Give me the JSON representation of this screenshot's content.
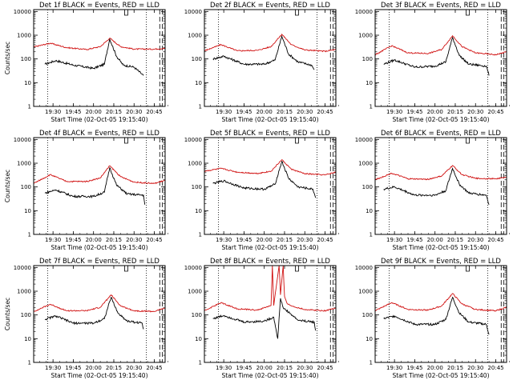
{
  "title_suffix": "BLACK = Events, RED = LLD",
  "colors": {
    "events": "#000000",
    "lld": "#d01010",
    "frame": "#000000"
  },
  "chart_data": [
    {
      "type": "line",
      "title": "Det 1f BLACK = Events, RED = LLD",
      "ylabel": "Counts/sec",
      "xlabel": "Start Time (02-Oct-05 19:15:40)",
      "x_tick_labels": [
        "19:30",
        "19:45",
        "20:00",
        "20:15",
        "20:30",
        "20:45"
      ],
      "y_tick_labels": [
        "1",
        "10",
        "100",
        "1000",
        "10000"
      ],
      "yscale": "log",
      "ylim": [
        1,
        12000
      ],
      "xlim": [
        "19:15:40",
        "20:53:00"
      ],
      "series": [
        {
          "x": [
            "19:24",
            "19:32",
            "19:45",
            "20:00",
            "20:08",
            "20:12",
            "20:17",
            "20:22",
            "20:30",
            "20:37"
          ],
          "y": [
            60,
            85,
            55,
            40,
            60,
            700,
            130,
            55,
            45,
            20
          ]
        },
        {
          "x": [
            "19:15:40",
            "19:28",
            "19:40",
            "19:55",
            "20:05",
            "20:12",
            "20:20",
            "20:30",
            "20:45",
            "20:53"
          ],
          "y": [
            320,
            460,
            300,
            250,
            330,
            750,
            330,
            260,
            260,
            280
          ]
        }
      ]
    },
    {
      "type": "line",
      "title": "Det 2f BLACK = Events, RED = LLD",
      "ylabel": "",
      "xlabel": "Start Time (02-Oct-05 19:15:40)",
      "x_tick_labels": [
        "19:30",
        "19:45",
        "20:00",
        "20:15",
        "20:30",
        "20:45"
      ],
      "y_tick_labels": [
        "1",
        "10",
        "100",
        "1000",
        "10000"
      ],
      "yscale": "log",
      "ylim": [
        1,
        12000
      ],
      "xlim": [
        "19:15:40",
        "20:53:00"
      ],
      "series": [
        {
          "x": [
            "19:22",
            "19:30",
            "19:45",
            "20:00",
            "20:08",
            "20:13",
            "20:18",
            "20:25",
            "20:35",
            "20:37"
          ],
          "y": [
            100,
            130,
            60,
            60,
            90,
            900,
            160,
            75,
            55,
            35
          ]
        },
        {
          "x": [
            "19:15:40",
            "19:28",
            "19:40",
            "19:55",
            "20:05",
            "20:13",
            "20:20",
            "20:30",
            "20:45",
            "20:53"
          ],
          "y": [
            220,
            400,
            220,
            230,
            330,
            1100,
            400,
            240,
            210,
            250
          ]
        }
      ]
    },
    {
      "type": "line",
      "title": "Det 3f BLACK = Events, RED = LLD",
      "ylabel": "",
      "xlabel": "Start Time (02-Oct-05 19:15:40)",
      "x_tick_labels": [
        "19:30",
        "19:45",
        "20:00",
        "20:15",
        "20:30",
        "20:45"
      ],
      "y_tick_labels": [
        "1",
        "10",
        "100",
        "1000",
        "10000"
      ],
      "yscale": "log",
      "ylim": [
        1,
        12000
      ],
      "xlim": [
        "19:15:40",
        "20:53:00"
      ],
      "series": [
        {
          "x": [
            "19:22",
            "19:30",
            "19:45",
            "20:00",
            "20:08",
            "20:13",
            "20:18",
            "20:25",
            "20:38",
            "20:40"
          ],
          "y": [
            60,
            90,
            45,
            50,
            75,
            800,
            140,
            60,
            50,
            20
          ]
        },
        {
          "x": [
            "19:15:40",
            "19:28",
            "19:40",
            "19:55",
            "20:05",
            "20:13",
            "20:20",
            "20:30",
            "20:45",
            "20:53"
          ],
          "y": [
            150,
            360,
            180,
            170,
            250,
            950,
            330,
            180,
            150,
            200
          ]
        }
      ]
    },
    {
      "type": "line",
      "title": "Det 4f BLACK = Events, RED = LLD",
      "ylabel": "Counts/sec",
      "xlabel": "Start Time (02-Oct-05 19:15:40)",
      "x_tick_labels": [
        "19:30",
        "19:45",
        "20:00",
        "20:15",
        "20:30",
        "20:45"
      ],
      "y_tick_labels": [
        "1",
        "10",
        "100",
        "1000",
        "10000"
      ],
      "yscale": "log",
      "ylim": [
        1,
        12000
      ],
      "xlim": [
        "19:15:40",
        "20:53:00"
      ],
      "series": [
        {
          "x": [
            "19:24",
            "19:32",
            "19:45",
            "20:00",
            "20:08",
            "20:12",
            "20:17",
            "20:25",
            "20:37",
            "20:38"
          ],
          "y": [
            55,
            75,
            40,
            40,
            60,
            650,
            120,
            50,
            45,
            18
          ]
        },
        {
          "x": [
            "19:15:40",
            "19:28",
            "19:40",
            "19:55",
            "20:05",
            "20:12",
            "20:20",
            "20:30",
            "20:45",
            "20:53"
          ],
          "y": [
            140,
            330,
            170,
            170,
            240,
            780,
            270,
            160,
            140,
            190
          ]
        }
      ]
    },
    {
      "type": "line",
      "title": "Det 5f BLACK = Events, RED = LLD",
      "ylabel": "",
      "xlabel": "Start Time (02-Oct-05 19:15:40)",
      "x_tick_labels": [
        "19:30",
        "19:45",
        "20:00",
        "20:15",
        "20:30",
        "20:45"
      ],
      "y_tick_labels": [
        "1",
        "10",
        "100",
        "1000",
        "10000"
      ],
      "yscale": "log",
      "ylim": [
        1,
        12000
      ],
      "xlim": [
        "19:15:40",
        "20:53:00"
      ],
      "series": [
        {
          "x": [
            "19:22",
            "19:30",
            "19:45",
            "20:00",
            "20:08",
            "20:13",
            "20:18",
            "20:25",
            "20:36",
            "20:38"
          ],
          "y": [
            140,
            180,
            90,
            80,
            130,
            1200,
            230,
            100,
            80,
            35
          ]
        },
        {
          "x": [
            "19:15:40",
            "19:28",
            "19:40",
            "19:55",
            "20:05",
            "20:13",
            "20:20",
            "20:30",
            "20:45",
            "20:53"
          ],
          "y": [
            460,
            600,
            420,
            370,
            460,
            1400,
            560,
            360,
            320,
            420
          ]
        }
      ]
    },
    {
      "type": "line",
      "title": "Det 6f BLACK = Events, RED = LLD",
      "ylabel": "",
      "xlabel": "Start Time (02-Oct-05 19:15:40)",
      "x_tick_labels": [
        "19:30",
        "19:45",
        "20:00",
        "20:15",
        "20:30",
        "20:45"
      ],
      "y_tick_labels": [
        "1",
        "10",
        "100",
        "1000",
        "10000"
      ],
      "yscale": "log",
      "ylim": [
        1,
        12000
      ],
      "xlim": [
        "19:15:40",
        "20:53:00"
      ],
      "series": [
        {
          "x": [
            "19:22",
            "19:30",
            "19:45",
            "20:00",
            "20:08",
            "20:13",
            "20:18",
            "20:25",
            "20:38",
            "20:40"
          ],
          "y": [
            80,
            100,
            45,
            45,
            70,
            600,
            130,
            55,
            45,
            18
          ]
        },
        {
          "x": [
            "19:15:40",
            "19:28",
            "19:40",
            "19:55",
            "20:05",
            "20:13",
            "20:20",
            "20:30",
            "20:45",
            "20:53"
          ],
          "y": [
            200,
            380,
            220,
            210,
            290,
            800,
            330,
            230,
            220,
            260
          ]
        }
      ]
    },
    {
      "type": "line",
      "title": "Det 7f BLACK = Events, RED = LLD",
      "ylabel": "Counts/sec",
      "xlabel": "Start Time (02-Oct-05 19:15:40)",
      "x_tick_labels": [
        "19:30",
        "19:45",
        "20:00",
        "20:15",
        "20:30",
        "20:45"
      ],
      "y_tick_labels": [
        "1",
        "10",
        "100",
        "1000",
        "10000"
      ],
      "yscale": "log",
      "ylim": [
        1,
        12000
      ],
      "xlim": [
        "19:15:40",
        "20:53:00"
      ],
      "series": [
        {
          "x": [
            "19:24",
            "19:32",
            "19:45",
            "20:00",
            "20:08",
            "20:13",
            "20:18",
            "20:25",
            "20:36",
            "20:37"
          ],
          "y": [
            65,
            90,
            45,
            45,
            70,
            550,
            120,
            55,
            45,
            25
          ]
        },
        {
          "x": [
            "19:15:40",
            "19:28",
            "19:40",
            "19:55",
            "20:05",
            "20:13",
            "20:20",
            "20:30",
            "20:45",
            "20:53"
          ],
          "y": [
            140,
            280,
            150,
            150,
            210,
            700,
            240,
            150,
            140,
            200
          ]
        }
      ]
    },
    {
      "type": "line",
      "title": "Det 8f BLACK = Events, RED = LLD",
      "ylabel": "",
      "xlabel": "Start Time (02-Oct-05 19:15:40)",
      "x_tick_labels": [
        "19:30",
        "19:45",
        "20:00",
        "20:15",
        "20:30",
        "20:45"
      ],
      "y_tick_labels": [
        "1",
        "10",
        "100",
        "1000",
        "10000"
      ],
      "yscale": "log",
      "ylim": [
        1,
        12000
      ],
      "xlim": [
        "19:15:40",
        "20:53:00"
      ],
      "series": [
        {
          "x": [
            "19:22",
            "19:30",
            "19:45",
            "20:00",
            "20:07",
            "20:10",
            "20:12",
            "20:14",
            "20:18",
            "20:25",
            "20:37",
            "20:38"
          ],
          "y": [
            70,
            95,
            50,
            55,
            80,
            10,
            500,
            200,
            130,
            60,
            50,
            22
          ]
        },
        {
          "x": [
            "19:15:40",
            "19:28",
            "19:40",
            "19:55",
            "20:05",
            "20:06",
            "20:07",
            "20:11",
            "20:12",
            "20:14",
            "20:15",
            "20:17",
            "20:20",
            "20:30",
            "20:45",
            "20:53"
          ],
          "y": [
            150,
            330,
            180,
            160,
            250,
            12000,
            250,
            12000,
            700,
            12000,
            600,
            300,
            240,
            170,
            150,
            200
          ]
        }
      ]
    },
    {
      "type": "line",
      "title": "Det 9f BLACK = Events, RED = LLD",
      "ylabel": "",
      "xlabel": "Start Time (02-Oct-05 19:15:40)",
      "x_tick_labels": [
        "19:30",
        "19:45",
        "20:00",
        "20:15",
        "20:30",
        "20:45"
      ],
      "y_tick_labels": [
        "1",
        "10",
        "100",
        "1000",
        "10000"
      ],
      "yscale": "log",
      "ylim": [
        1,
        12000
      ],
      "xlim": [
        "19:15:40",
        "20:53:00"
      ],
      "series": [
        {
          "x": [
            "19:22",
            "19:30",
            "19:45",
            "20:00",
            "20:08",
            "20:13",
            "20:18",
            "20:25",
            "20:38",
            "20:40"
          ],
          "y": [
            70,
            90,
            40,
            40,
            65,
            550,
            120,
            50,
            40,
            15
          ]
        },
        {
          "x": [
            "19:15:40",
            "19:28",
            "19:40",
            "19:55",
            "20:05",
            "20:13",
            "20:20",
            "20:30",
            "20:45",
            "20:53"
          ],
          "y": [
            150,
            330,
            170,
            160,
            240,
            800,
            290,
            170,
            150,
            210
          ]
        }
      ]
    }
  ]
}
